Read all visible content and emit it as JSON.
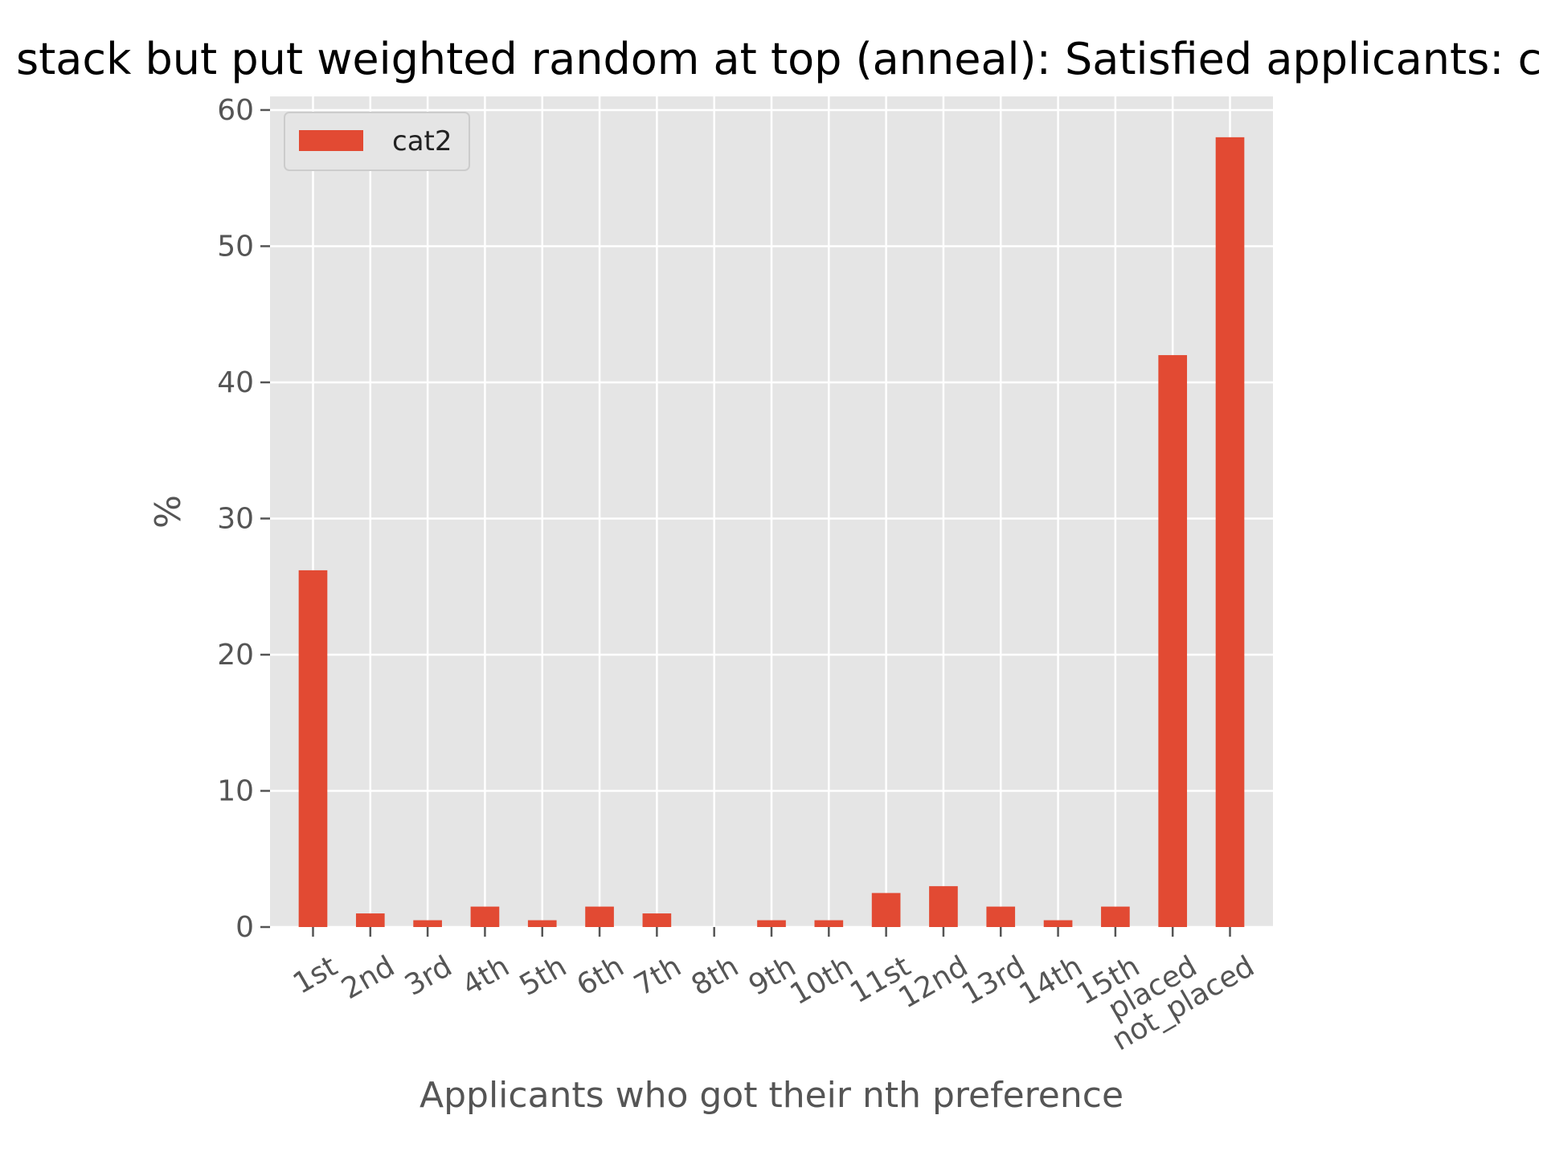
{
  "chart_data": {
    "type": "bar",
    "title": "stack but put weighted random at top (anneal): Satisfied applicants: ca",
    "xlabel": "Applicants who got their nth preference",
    "ylabel": "%",
    "categories": [
      "1st",
      "2nd",
      "3rd",
      "4th",
      "5th",
      "6th",
      "7th",
      "8th",
      "9th",
      "10th",
      "11st",
      "12nd",
      "13rd",
      "14th",
      "15th",
      "placed",
      "not_placed"
    ],
    "series": [
      {
        "name": "cat2",
        "values": [
          26.2,
          1.0,
          0.5,
          1.5,
          0.5,
          1.5,
          1.0,
          0.0,
          0.5,
          0.5,
          2.5,
          3.0,
          1.5,
          0.5,
          1.5,
          42.0,
          58.0
        ]
      }
    ],
    "ylim": [
      0,
      61
    ],
    "yticks": [
      0,
      10,
      20,
      30,
      40,
      50,
      60
    ],
    "grid": true,
    "legend": "top-left",
    "colors": {
      "bar": "#e24a33",
      "plot_bg": "#e5e5e5",
      "grid": "#ffffff"
    }
  }
}
